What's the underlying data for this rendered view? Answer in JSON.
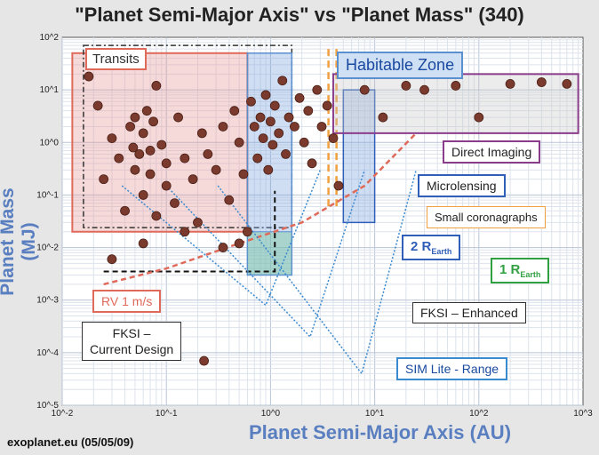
{
  "title": "\"Planet Semi-Major Axis\"  vs \"Planet Mass\" (340)",
  "source": "exoplanet.eu (05/05/09)",
  "colors": {
    "point": "#7a3b2e",
    "accent_blue": "#2f5fb8",
    "accent_red": "#e06a5a",
    "accent_orange": "#f0a040",
    "accent_green": "#30a040",
    "accent_purple": "#8a3d8a"
  },
  "chart_data": {
    "type": "scatter",
    "title": "\"Planet Semi-Major Axis\"  vs \"Planet Mass\" (340)",
    "xlabel": "Planet Semi-Major Axis (AU)",
    "ylabel": "Planet Mass (MJ)",
    "xscale": "log",
    "yscale": "log",
    "xlim": [
      0.01,
      1000
    ],
    "ylim": [
      1e-05,
      100
    ],
    "grid": true,
    "xticks": [
      "10^-2",
      "10^-1",
      "10^0",
      "10^1",
      "10^2",
      "10^3"
    ],
    "yticks": [
      "10^2",
      "10^1",
      "10^0",
      "10^-1",
      "10^-2",
      "10^-3",
      "10^-4",
      "10^-5"
    ],
    "annotations": {
      "transits": "Transits",
      "habitable_zone": "Habitable Zone",
      "direct_imaging": "Direct Imaging",
      "microlensing": "Microlensing",
      "small_coronagraphs": "Small coronagraphs",
      "two_r_earth_main": "2 R",
      "two_r_earth_sub": "Earth",
      "one_r_earth_main": "1 R",
      "one_r_earth_sub": "Earth",
      "rv": "RV 1 m/s",
      "fksi_enhanced": "FKSI – Enhanced",
      "fksi_current_line1": "FKSI –",
      "fksi_current_line2": "Current Design",
      "sim_lite": "SIM Lite - Range"
    },
    "points": [
      [
        0.018,
        18
      ],
      [
        0.022,
        5
      ],
      [
        0.025,
        0.2
      ],
      [
        0.03,
        1.2
      ],
      [
        0.035,
        0.5
      ],
      [
        0.04,
        0.05
      ],
      [
        0.045,
        2
      ],
      [
        0.048,
        0.8
      ],
      [
        0.05,
        0.3
      ],
      [
        0.05,
        3
      ],
      [
        0.055,
        0.6
      ],
      [
        0.06,
        1.5
      ],
      [
        0.06,
        0.1
      ],
      [
        0.065,
        4
      ],
      [
        0.07,
        0.7
      ],
      [
        0.07,
        0.25
      ],
      [
        0.075,
        2.5
      ],
      [
        0.08,
        12
      ],
      [
        0.08,
        0.04
      ],
      [
        0.09,
        0.9
      ],
      [
        0.1,
        0.15
      ],
      [
        0.1,
        0.4
      ],
      [
        0.12,
        0.07
      ],
      [
        0.13,
        3
      ],
      [
        0.15,
        0.5
      ],
      [
        0.18,
        0.2
      ],
      [
        0.2,
        0.03
      ],
      [
        0.22,
        1.5
      ],
      [
        0.25,
        0.6
      ],
      [
        0.3,
        0.3
      ],
      [
        0.35,
        2
      ],
      [
        0.4,
        0.08
      ],
      [
        0.45,
        4
      ],
      [
        0.5,
        1
      ],
      [
        0.55,
        0.25
      ],
      [
        0.6,
        0.02
      ],
      [
        0.65,
        6
      ],
      [
        0.7,
        2
      ],
      [
        0.75,
        0.5
      ],
      [
        0.8,
        3
      ],
      [
        0.85,
        1.2
      ],
      [
        0.9,
        8
      ],
      [
        0.95,
        0.3
      ],
      [
        1.0,
        2.5
      ],
      [
        1.05,
        0.9
      ],
      [
        1.1,
        5
      ],
      [
        1.2,
        1.5
      ],
      [
        1.3,
        15
      ],
      [
        1.4,
        0.6
      ],
      [
        1.5,
        3
      ],
      [
        1.7,
        2
      ],
      [
        1.9,
        7
      ],
      [
        2.1,
        1
      ],
      [
        2.3,
        4
      ],
      [
        2.5,
        0.4
      ],
      [
        2.8,
        10
      ],
      [
        3.1,
        2
      ],
      [
        3.5,
        5
      ],
      [
        4.0,
        1.2
      ],
      [
        4.5,
        0.15
      ],
      [
        8,
        10
      ],
      [
        12,
        3
      ],
      [
        20,
        12
      ],
      [
        30,
        10
      ],
      [
        60,
        12
      ],
      [
        100,
        3
      ],
      [
        200,
        13
      ],
      [
        400,
        14
      ],
      [
        700,
        13
      ],
      [
        0.23,
        7e-05
      ],
      [
        0.03,
        0.006
      ],
      [
        0.06,
        0.012
      ],
      [
        0.15,
        0.02
      ],
      [
        0.35,
        0.01
      ],
      [
        0.5,
        0.012
      ]
    ]
  }
}
